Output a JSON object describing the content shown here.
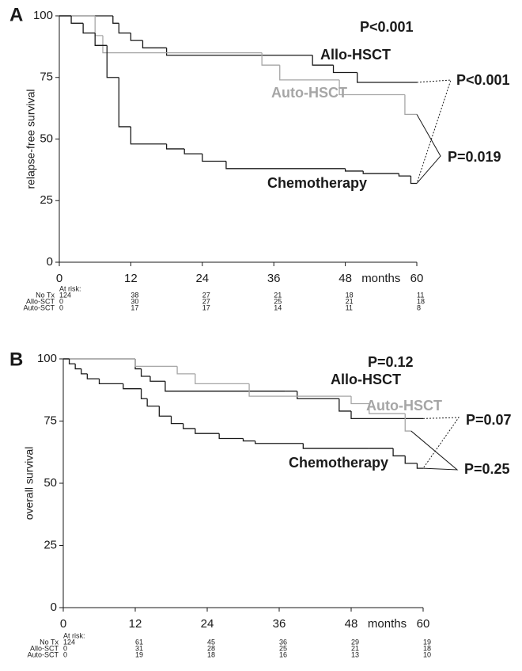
{
  "chart_data": [
    {
      "type": "line",
      "panel": "A",
      "title": "P<0.001",
      "ylabel": "relapse-free survival",
      "xlabel": "months",
      "xlim": [
        0,
        60
      ],
      "ylim": [
        0,
        100
      ],
      "xticks": [
        0,
        12,
        24,
        36,
        48,
        60
      ],
      "yticks": [
        0,
        25,
        50,
        75,
        100
      ],
      "series": [
        {
          "name": "Allo-HSCT",
          "color": "#1a1a1a",
          "x": [
            0,
            9,
            10,
            12,
            14,
            18,
            42.5,
            46,
            50,
            60
          ],
          "values": [
            100,
            97,
            93,
            90,
            87,
            84,
            80,
            77,
            73,
            73
          ]
        },
        {
          "name": "Auto-HSCT",
          "color": "#a6a6a6",
          "x": [
            0,
            6,
            7.3,
            34,
            37,
            47,
            58,
            60
          ],
          "values": [
            100,
            92,
            85,
            80,
            74,
            68,
            60,
            60
          ]
        },
        {
          "name": "Chemotherapy",
          "color": "#1a1a1a",
          "x": [
            0,
            2,
            4,
            6,
            8,
            10,
            12,
            18,
            21,
            24,
            28,
            48,
            51,
            57,
            59,
            60
          ],
          "values": [
            100,
            97,
            93,
            88,
            75,
            55,
            48,
            46,
            44,
            41,
            38,
            37,
            36,
            35,
            32,
            32
          ]
        }
      ],
      "annotations": [
        "P<0.001",
        "P=0.019"
      ],
      "at_risk": {
        "label": "At risk:",
        "rows": [
          {
            "name": "No Tx",
            "values": [
              "124",
              "38",
              "27",
              "21",
              "18",
              "11"
            ]
          },
          {
            "name": "Allo-SCT",
            "values": [
              "0",
              "30",
              "27",
              "25",
              "21",
              "18"
            ]
          },
          {
            "name": "Auto-SCT",
            "values": [
              "0",
              "17",
              "17",
              "14",
              "11",
              "8"
            ]
          }
        ]
      }
    },
    {
      "type": "line",
      "panel": "B",
      "title": "P=0.12",
      "ylabel": "overall survival",
      "xlabel": "months",
      "xlim": [
        0,
        60
      ],
      "ylim": [
        0,
        100
      ],
      "xticks": [
        0,
        12,
        24,
        36,
        48,
        60
      ],
      "yticks": [
        0,
        25,
        50,
        75,
        100
      ],
      "series": [
        {
          "name": "Allo-HSCT",
          "color": "#1a1a1a",
          "x": [
            0,
            12,
            13,
            14.5,
            17,
            37,
            39,
            46,
            48,
            60
          ],
          "values": [
            100,
            96,
            93,
            91,
            87,
            87,
            84,
            79,
            76,
            76
          ]
        },
        {
          "name": "Auto-HSCT",
          "color": "#a6a6a6",
          "x": [
            0,
            12,
            19,
            22,
            31,
            48,
            51,
            57,
            58
          ],
          "values": [
            100,
            97,
            94,
            90,
            85,
            82,
            78,
            71,
            71
          ]
        },
        {
          "name": "Chemotherapy",
          "color": "#1a1a1a",
          "x": [
            0,
            1,
            2,
            3,
            4,
            6,
            10,
            13,
            14,
            16,
            18,
            20,
            22,
            26,
            30,
            32,
            40,
            51,
            55,
            57,
            59,
            60
          ],
          "values": [
            100,
            98,
            96,
            94,
            92,
            90,
            88,
            84,
            81,
            77,
            74,
            72,
            70,
            68,
            67,
            66,
            64,
            64,
            61,
            58,
            56,
            56
          ]
        }
      ],
      "annotations": [
        "P=0.07",
        "P=0.25"
      ],
      "at_risk": {
        "label": "At risk:",
        "rows": [
          {
            "name": "No Tx",
            "values": [
              "124",
              "61",
              "45",
              "36",
              "29",
              "19"
            ]
          },
          {
            "name": "Allo-SCT",
            "values": [
              "0",
              "31",
              "28",
              "25",
              "21",
              "18"
            ]
          },
          {
            "name": "Auto-SCT",
            "values": [
              "0",
              "19",
              "18",
              "16",
              "13",
              "10"
            ]
          }
        ]
      }
    }
  ]
}
